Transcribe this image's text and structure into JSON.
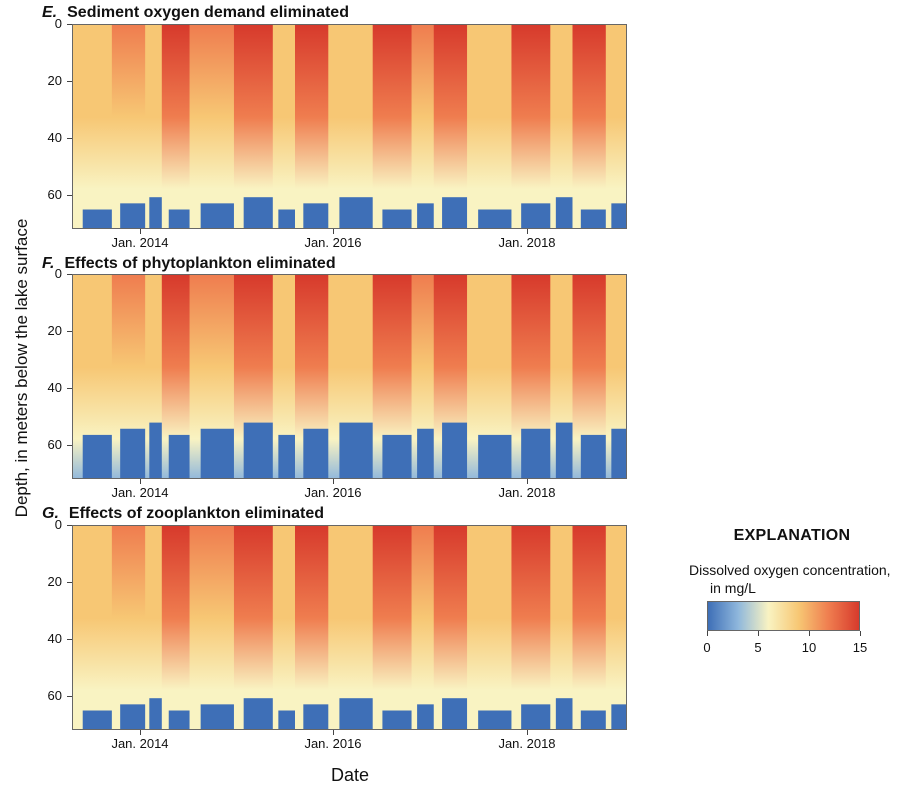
{
  "figure": {
    "y_axis_label": "Depth, in meters below the lake surface",
    "x_axis_label": "Date"
  },
  "legend": {
    "title": "EXPLANATION",
    "label_line1": "Dissolved oxygen concentration,",
    "label_line2": "in mg/L",
    "ticks": [
      "0",
      "5",
      "10",
      "15"
    ],
    "colors": [
      "#3e6fb7",
      "#8fb7dc",
      "#f9f3c2",
      "#f7c774",
      "#ef7d4f",
      "#d73a2c"
    ]
  },
  "chart_data": [
    {
      "type": "heatmap",
      "panel_letter": "E.",
      "title": "Sediment oxygen demand eliminated",
      "ylabel": "",
      "xlabel": "",
      "y_ticks": [
        "0",
        "20",
        "40",
        "60"
      ],
      "y_range": [
        0,
        72
      ],
      "y_inverted": true,
      "x_ticks": [
        "Jan. 2014",
        "Jan. 2016",
        "Jan. 2018"
      ],
      "x_range": [
        "2013-01",
        "2018-12"
      ],
      "value_range": [
        0,
        15
      ]
    },
    {
      "type": "heatmap",
      "panel_letter": "F.",
      "title": "Effects of phytoplankton eliminated",
      "ylabel": "",
      "xlabel": "",
      "y_ticks": [
        "0",
        "20",
        "40",
        "60"
      ],
      "y_range": [
        0,
        72
      ],
      "y_inverted": true,
      "x_ticks": [
        "Jan. 2014",
        "Jan. 2016",
        "Jan. 2018"
      ],
      "x_range": [
        "2013-01",
        "2018-12"
      ],
      "value_range": [
        0,
        15
      ]
    },
    {
      "type": "heatmap",
      "panel_letter": "G.",
      "title": "Effects of zooplankton eliminated",
      "ylabel": "",
      "xlabel": "",
      "y_ticks": [
        "0",
        "20",
        "40",
        "60"
      ],
      "y_range": [
        0,
        72
      ],
      "y_inverted": true,
      "x_ticks": [
        "Jan. 2014",
        "Jan. 2016",
        "Jan. 2018"
      ],
      "x_range": [
        "2013-01",
        "2018-12"
      ],
      "value_range": [
        0,
        15
      ]
    }
  ]
}
